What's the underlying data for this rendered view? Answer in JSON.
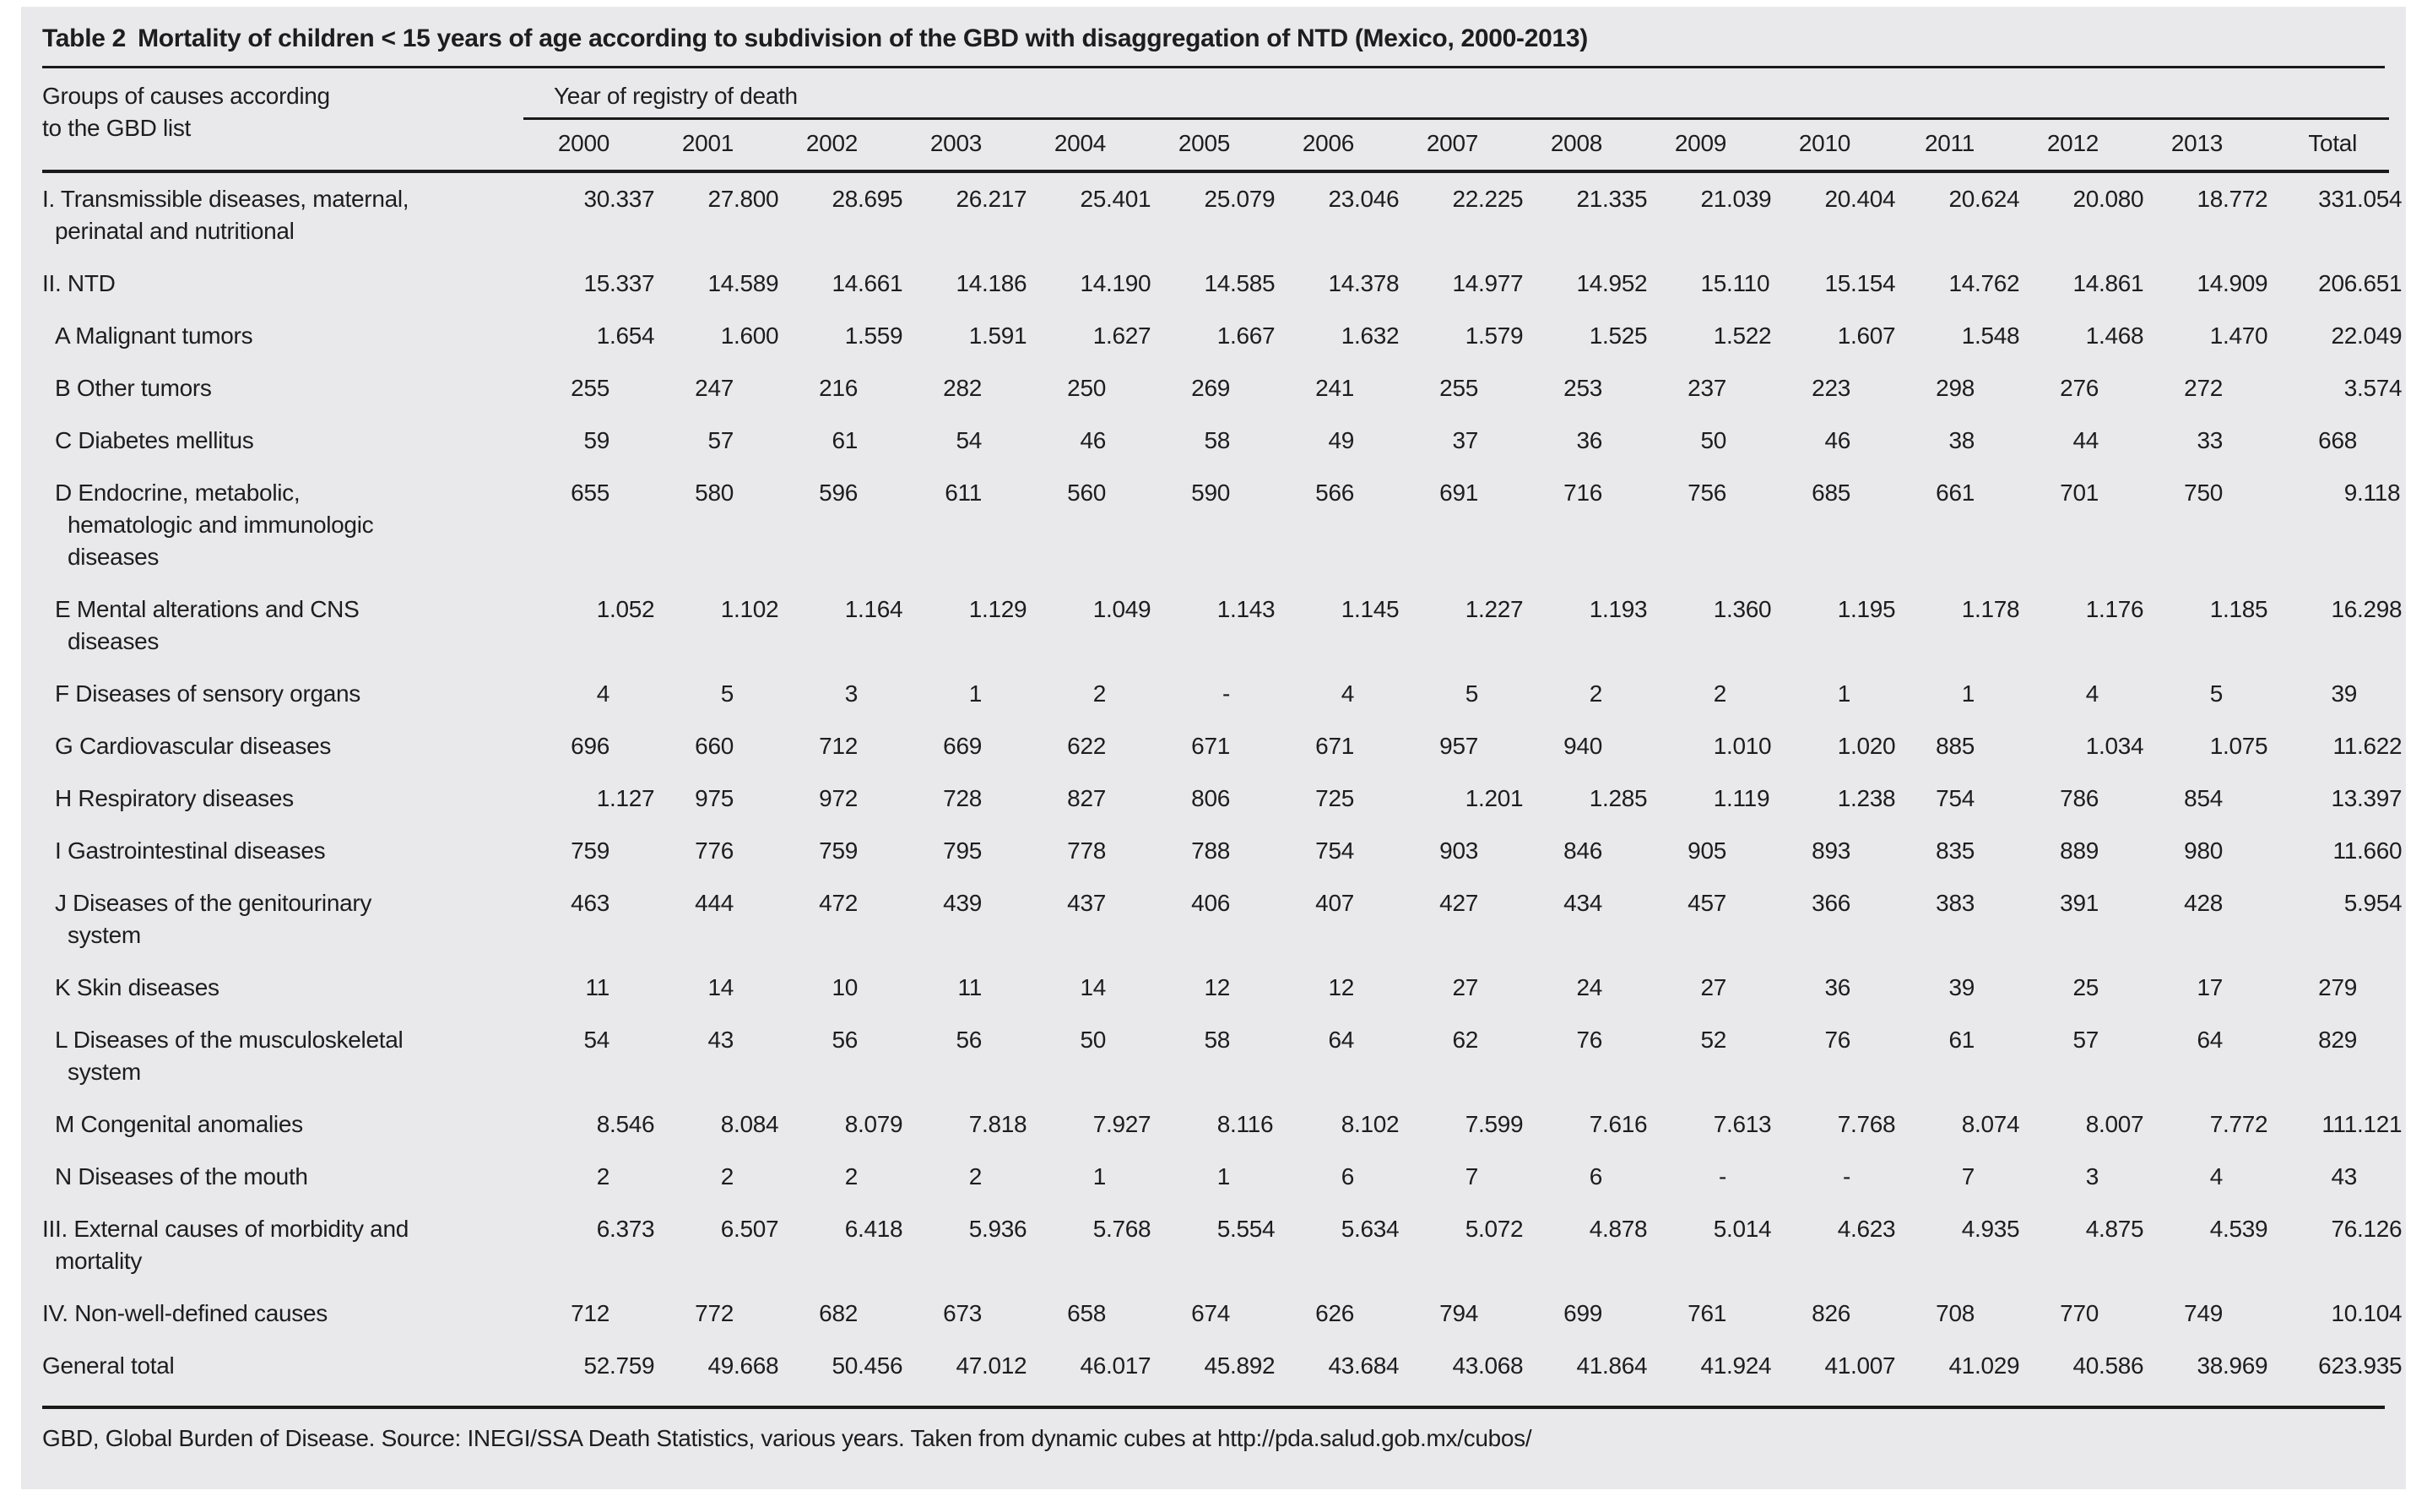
{
  "colors": {
    "panel_bg": "#e9e9eb",
    "page_bg": "#ffffff",
    "text": "#1d1d1f",
    "rule": "#1a1a1a"
  },
  "table": {
    "title_label": "Table 2",
    "title_text": "Mortality of children < 15 years of age according to subdivision of the GBD with disaggregation of NTD (Mexico, 2000-2013)",
    "row_header": "Groups of causes according\nto the GBD list",
    "col_group_header": "Year of registry of death",
    "columns": [
      "2000",
      "2001",
      "2002",
      "2003",
      "2004",
      "2005",
      "2006",
      "2007",
      "2008",
      "2009",
      "2010",
      "2011",
      "2012",
      "2013",
      "Total"
    ],
    "rows": [
      {
        "label": "I. Transmissible diseases, maternal,\nperinatal and nutritional",
        "level": "main",
        "values": [
          "30.337",
          "27.800",
          "28.695",
          "26.217",
          "25.401",
          "25.079",
          "23.046",
          "22.225",
          "21.335",
          "21.039",
          "20.404",
          "20.624",
          "20.080",
          "18.772",
          "331.054"
        ]
      },
      {
        "label": "II. NTD",
        "level": "main",
        "values": [
          "15.337",
          "14.589",
          "14.661",
          "14.186",
          "14.190",
          "14.585",
          "14.378",
          "14.977",
          "14.952",
          "15.110",
          "15.154",
          "14.762",
          "14.861",
          "14.909",
          "206.651"
        ]
      },
      {
        "label": "A Malignant tumors",
        "level": "sub",
        "values": [
          "1.654",
          "1.600",
          "1.559",
          "1.591",
          "1.627",
          "1.667",
          "1.632",
          "1.579",
          "1.525",
          "1.522",
          "1.607",
          "1.548",
          "1.468",
          "1.470",
          "22.049"
        ]
      },
      {
        "label": "B Other tumors",
        "level": "sub",
        "values": [
          "255",
          "247",
          "216",
          "282",
          "250",
          "269",
          "241",
          "255",
          "253",
          "237",
          "223",
          "298",
          "276",
          "272",
          "3.574"
        ]
      },
      {
        "label": "C Diabetes mellitus",
        "level": "sub",
        "values": [
          "59",
          "57",
          "61",
          "54",
          "46",
          "58",
          "49",
          "37",
          "36",
          "50",
          "46",
          "38",
          "44",
          "33",
          "668"
        ]
      },
      {
        "label": "D Endocrine, metabolic,\nhematologic and immunologic\ndiseases",
        "level": "sub",
        "values": [
          "655",
          "580",
          "596",
          "611",
          "560",
          "590",
          "566",
          "691",
          "716",
          "756",
          "685",
          "661",
          "701",
          "750",
          "9.118"
        ]
      },
      {
        "label": "E Mental alterations and CNS\ndiseases",
        "level": "sub",
        "values": [
          "1.052",
          "1.102",
          "1.164",
          "1.129",
          "1.049",
          "1.143",
          "1.145",
          "1.227",
          "1.193",
          "1.360",
          "1.195",
          "1.178",
          "1.176",
          "1.185",
          "16.298"
        ]
      },
      {
        "label": "F Diseases of sensory organs",
        "level": "sub",
        "values": [
          "4",
          "5",
          "3",
          "1",
          "2",
          "-",
          "4",
          "5",
          "2",
          "2",
          "1",
          "1",
          "4",
          "5",
          "39"
        ]
      },
      {
        "label": "G Cardiovascular diseases",
        "level": "sub",
        "values": [
          "696",
          "660",
          "712",
          "669",
          "622",
          "671",
          "671",
          "957",
          "940",
          "1.010",
          "1.020",
          "885",
          "1.034",
          "1.075",
          "11.622"
        ]
      },
      {
        "label": "H Respiratory diseases",
        "level": "sub",
        "values": [
          "1.127",
          "975",
          "972",
          "728",
          "827",
          "806",
          "725",
          "1.201",
          "1.285",
          "1.119",
          "1.238",
          "754",
          "786",
          "854",
          "13.397"
        ]
      },
      {
        "label": "I Gastrointestinal diseases",
        "level": "sub",
        "values": [
          "759",
          "776",
          "759",
          "795",
          "778",
          "788",
          "754",
          "903",
          "846",
          "905",
          "893",
          "835",
          "889",
          "980",
          "11.660"
        ]
      },
      {
        "label": "J Diseases of the genitourinary\nsystem",
        "level": "sub",
        "values": [
          "463",
          "444",
          "472",
          "439",
          "437",
          "406",
          "407",
          "427",
          "434",
          "457",
          "366",
          "383",
          "391",
          "428",
          "5.954"
        ]
      },
      {
        "label": "K Skin diseases",
        "level": "sub",
        "values": [
          "11",
          "14",
          "10",
          "11",
          "14",
          "12",
          "12",
          "27",
          "24",
          "27",
          "36",
          "39",
          "25",
          "17",
          "279"
        ]
      },
      {
        "label": "L Diseases of the musculoskeletal\nsystem",
        "level": "sub",
        "values": [
          "54",
          "43",
          "56",
          "56",
          "50",
          "58",
          "64",
          "62",
          "76",
          "52",
          "76",
          "61",
          "57",
          "64",
          "829"
        ]
      },
      {
        "label": "M Congenital anomalies",
        "level": "sub",
        "values": [
          "8.546",
          "8.084",
          "8.079",
          "7.818",
          "7.927",
          "8.116",
          "8.102",
          "7.599",
          "7.616",
          "7.613",
          "7.768",
          "8.074",
          "8.007",
          "7.772",
          "111.121"
        ]
      },
      {
        "label": "N Diseases of the mouth",
        "level": "sub",
        "values": [
          "2",
          "2",
          "2",
          "2",
          "1",
          "1",
          "6",
          "7",
          "6",
          "-",
          "-",
          "7",
          "3",
          "4",
          "43"
        ]
      },
      {
        "label": "III. External causes of morbidity and\nmortality",
        "level": "main",
        "values": [
          "6.373",
          "6.507",
          "6.418",
          "5.936",
          "5.768",
          "5.554",
          "5.634",
          "5.072",
          "4.878",
          "5.014",
          "4.623",
          "4.935",
          "4.875",
          "4.539",
          "76.126"
        ]
      },
      {
        "label": "IV. Non-well-defined causes",
        "level": "main",
        "values": [
          "712",
          "772",
          "682",
          "673",
          "658",
          "674",
          "626",
          "794",
          "699",
          "761",
          "826",
          "708",
          "770",
          "749",
          "10.104"
        ]
      },
      {
        "label": "General total",
        "level": "main",
        "values": [
          "52.759",
          "49.668",
          "50.456",
          "47.012",
          "46.017",
          "45.892",
          "43.684",
          "43.068",
          "41.864",
          "41.924",
          "41.007",
          "41.029",
          "40.586",
          "38.969",
          "623.935"
        ]
      }
    ],
    "footnote": "GBD, Global Burden of Disease. Source: INEGI/SSA Death Statistics, various years. Taken from dynamic cubes at http://pda.salud.gob.mx/cubos/"
  }
}
